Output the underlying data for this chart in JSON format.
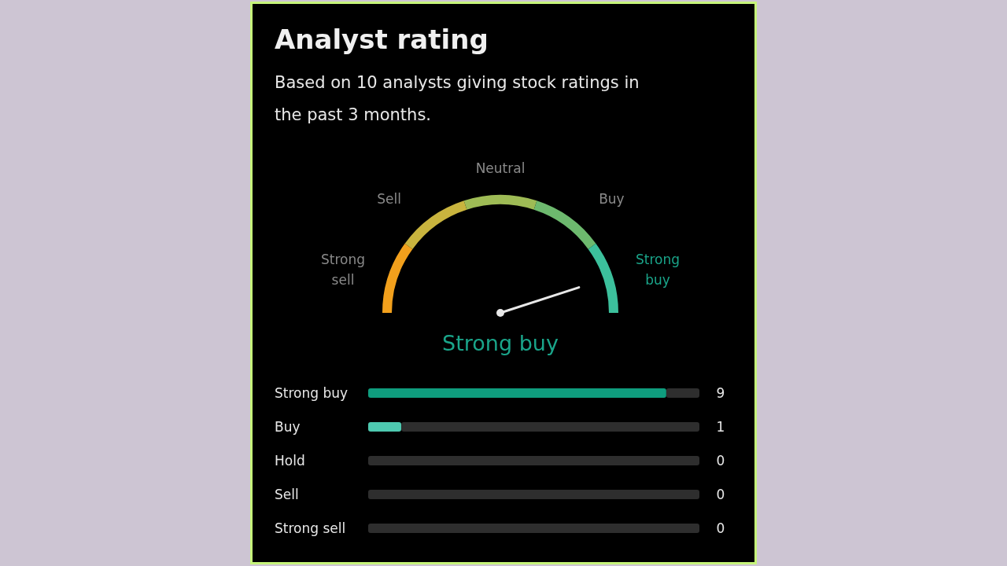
{
  "chart_data": [
    {
      "type": "other",
      "title": "Analyst rating",
      "subtitle": "Based on 10 analysts giving stock ratings in the past 3 months.",
      "categories": [
        "Strong sell",
        "Sell",
        "Neutral",
        "Buy",
        "Strong buy"
      ],
      "colors": [
        "#f2a01c",
        "#c9b43e",
        "#9ebb55",
        "#6db96e",
        "#3cc09c"
      ],
      "needle": "Strong buy"
    },
    {
      "type": "bar",
      "orientation": "horizontal",
      "categories": [
        "Strong buy",
        "Buy",
        "Hold",
        "Sell",
        "Strong sell"
      ],
      "stacked": true,
      "series": [
        {
          "values": [
            9,
            1,
            0,
            0,
            0
          ],
          "colors": [
            "#0f9d7e",
            "#4ec9b0",
            null,
            null,
            null
          ],
          "value_labels": [
            "9",
            "1",
            "0",
            "0",
            "0"
          ]
        },
        {
          "values": [
            1,
            9,
            10,
            10,
            10
          ],
          "color": "#2e2e2e"
        }
      ],
      "xlim": [
        0,
        10
      ],
      "tick_labels": false
    }
  ]
}
